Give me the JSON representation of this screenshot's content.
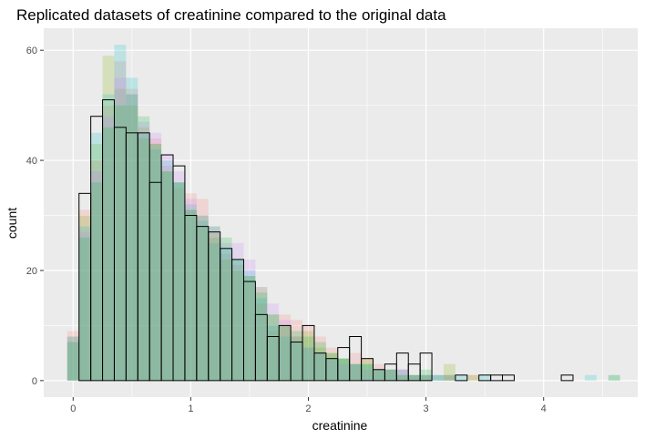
{
  "chart_data": {
    "type": "bar",
    "title": "Replicated datasets of creatinine compared to the original data",
    "xlabel": "creatinine",
    "ylabel": "count",
    "xlim": [
      -0.25,
      4.8
    ],
    "ylim": [
      -3,
      64
    ],
    "x_ticks": [
      0,
      1,
      2,
      3,
      4
    ],
    "y_ticks": [
      0,
      20,
      40,
      60
    ],
    "grid": true,
    "legend": "none",
    "bin_width": 0.1,
    "background": "#ebebeb",
    "grid_color": "#ffffff",
    "original": {
      "outline_color": "#000000",
      "x_start": -0.05,
      "counts": [
        0,
        34,
        48,
        51,
        46,
        45,
        45,
        36,
        41,
        39,
        30,
        28,
        27,
        24,
        22,
        18,
        12,
        8,
        10,
        7,
        10,
        5,
        4,
        6,
        8,
        4,
        2,
        3,
        5,
        3,
        5,
        0,
        0,
        1,
        0,
        1,
        1,
        1,
        0,
        0,
        0,
        0,
        1,
        0
      ]
    },
    "replicates": [
      {
        "color": "#f8766d",
        "x_start": -0.05,
        "counts": [
          9,
          31,
          40,
          50,
          58,
          53,
          46,
          44,
          39,
          35,
          34,
          33,
          27,
          23,
          21,
          18,
          14,
          9,
          12,
          11,
          10,
          8,
          6,
          4,
          5,
          4,
          3,
          2,
          2,
          1,
          1,
          0,
          1,
          0,
          1,
          0,
          0,
          0,
          0,
          0,
          0,
          0,
          0
        ]
      },
      {
        "color": "#7cae00",
        "x_start": -0.05,
        "counts": [
          7,
          30,
          43,
          59,
          53,
          50,
          44,
          43,
          38,
          36,
          31,
          28,
          26,
          22,
          20,
          19,
          17,
          12,
          10,
          8,
          9,
          6,
          5,
          4,
          3,
          4,
          2,
          2,
          1,
          1,
          1,
          0,
          3,
          0,
          1,
          0,
          0,
          0,
          0,
          0,
          0,
          0,
          0,
          0,
          0,
          0,
          1
        ]
      },
      {
        "color": "#00bfc4",
        "x_start": -0.05,
        "counts": [
          7,
          28,
          45,
          52,
          61,
          55,
          45,
          42,
          40,
          36,
          32,
          29,
          25,
          24,
          22,
          20,
          15,
          10,
          8,
          7,
          6,
          5,
          4,
          4,
          3,
          3,
          2,
          2,
          2,
          1,
          1,
          1,
          0,
          1,
          0,
          1,
          0,
          0,
          0,
          0,
          0,
          0,
          0,
          0,
          1,
          0,
          1
        ]
      },
      {
        "color": "#c77cff",
        "x_start": -0.05,
        "counts": [
          8,
          27,
          38,
          48,
          55,
          52,
          47,
          45,
          41,
          38,
          33,
          30,
          28,
          25,
          25,
          22,
          17,
          14,
          11,
          8,
          6,
          5,
          4,
          3,
          3,
          2,
          2,
          2,
          2,
          1,
          1,
          1,
          1,
          0,
          0,
          0,
          0,
          0,
          0,
          0,
          0,
          0,
          0,
          0,
          0,
          0,
          0
        ]
      },
      {
        "color": "#00ba38",
        "x_start": -0.05,
        "counts": [
          8,
          26,
          36,
          46,
          50,
          52,
          48,
          43,
          38,
          36,
          31,
          30,
          28,
          26,
          22,
          19,
          16,
          12,
          10,
          9,
          8,
          7,
          5,
          4,
          3,
          3,
          2,
          2,
          1,
          1,
          2,
          1,
          1,
          0,
          0,
          0,
          0,
          0,
          0,
          0,
          0,
          0,
          0,
          0,
          0,
          0,
          0
        ]
      }
    ]
  }
}
